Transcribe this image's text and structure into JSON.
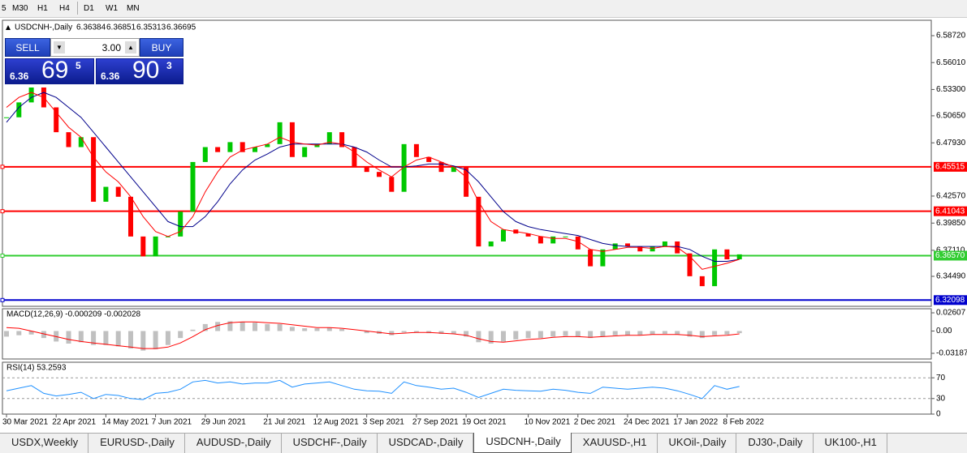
{
  "toolbar": {
    "timeframes": [
      "5",
      "M30",
      "H1",
      "H4",
      "D1",
      "W1",
      "MN"
    ]
  },
  "trade_panel": {
    "sell_label": "SELL",
    "lots": "3.00",
    "buy_label": "BUY",
    "sell_price": {
      "big": "6.36",
      "main": "69",
      "pip": "5"
    },
    "buy_price": {
      "big": "6.36",
      "main": "90",
      "pip": "3"
    }
  },
  "chart_data": [
    {
      "type": "candlestick",
      "title": "USDCNH-,Daily",
      "ohlc": [
        6.36384,
        6.36851,
        6.35313,
        6.36695
      ],
      "x": [
        "30 Mar 2021",
        null,
        null,
        null,
        "22 Apr 2021",
        null,
        null,
        null,
        "14 May 2021",
        null,
        null,
        null,
        "7 Jun 2021",
        null,
        null,
        null,
        "29 Jun 2021",
        null,
        null,
        null,
        null,
        "21 Jul 2021",
        null,
        null,
        null,
        "12 Aug 2021",
        null,
        null,
        null,
        "3 Sep 2021",
        null,
        null,
        null,
        "27 Sep 2021",
        null,
        null,
        null,
        "19 Oct 2021",
        null,
        null,
        null,
        null,
        "10 Nov 2021",
        null,
        null,
        null,
        "2 Dec 2021",
        null,
        null,
        null,
        "24 Dec 2021",
        null,
        null,
        null,
        "17 Jan 2022",
        null,
        null,
        null,
        "8 Feb 2022",
        null
      ],
      "close": [
        6.505,
        6.52,
        6.535,
        6.515,
        6.49,
        6.475,
        6.485,
        6.42,
        6.435,
        6.425,
        6.385,
        6.365,
        6.385,
        6.385,
        6.41,
        6.46,
        6.475,
        6.47,
        6.48,
        6.47,
        6.475,
        6.478,
        6.5,
        6.465,
        6.475,
        6.478,
        6.49,
        6.475,
        6.455,
        6.45,
        6.445,
        6.43,
        6.478,
        6.465,
        6.46,
        6.45,
        6.455,
        6.425,
        6.375,
        6.38,
        6.392,
        6.388,
        6.385,
        6.378,
        6.385,
        6.385,
        6.372,
        6.355,
        6.372,
        6.378,
        6.375,
        6.37,
        6.375,
        6.38,
        6.368,
        6.345,
        6.335,
        6.372,
        6.362,
        6.367
      ],
      "up_color": "#00c800",
      "down_color": "#ff0000",
      "ma_fast": {
        "color": "#ff0000",
        "values": [
          6.515,
          6.525,
          6.53,
          6.525,
          6.51,
          6.495,
          6.485,
          6.465,
          6.45,
          6.44,
          6.425,
          6.405,
          6.39,
          6.385,
          6.39,
          6.405,
          6.43,
          6.45,
          6.465,
          6.472,
          6.475,
          6.478,
          6.485,
          6.48,
          6.478,
          6.477,
          6.48,
          6.478,
          6.47,
          6.46,
          6.452,
          6.445,
          6.455,
          6.462,
          6.465,
          6.46,
          6.455,
          6.445,
          6.42,
          6.4,
          6.392,
          6.39,
          6.388,
          6.385,
          6.383,
          6.383,
          6.38,
          6.372,
          6.37,
          6.372,
          6.374,
          6.374,
          6.373,
          6.375,
          6.374,
          6.365,
          6.352,
          6.355,
          6.358,
          6.362
        ]
      },
      "ma_slow": {
        "color": "#00008b",
        "values": [
          6.5,
          6.515,
          6.525,
          6.53,
          6.525,
          6.515,
          6.505,
          6.49,
          6.475,
          6.46,
          6.445,
          6.43,
          6.415,
          6.4,
          6.395,
          6.395,
          6.405,
          6.42,
          6.438,
          6.452,
          6.462,
          6.468,
          6.475,
          6.478,
          6.478,
          6.478,
          6.478,
          6.478,
          6.475,
          6.47,
          6.462,
          6.455,
          6.455,
          6.456,
          6.458,
          6.458,
          6.456,
          6.452,
          6.44,
          6.425,
          6.41,
          6.4,
          6.395,
          6.392,
          6.39,
          6.388,
          6.386,
          6.382,
          6.378,
          6.376,
          6.375,
          6.375,
          6.375,
          6.375,
          6.375,
          6.372,
          6.365,
          6.36,
          6.36,
          6.362
        ]
      },
      "levels": [
        {
          "value": 6.45515,
          "label": "6.45515",
          "color": "#ff0000"
        },
        {
          "value": 6.41043,
          "label": "6.41043",
          "color": "#ff0000"
        },
        {
          "value": 6.3657,
          "label": "6.36570",
          "color": "#32cd32"
        },
        {
          "value": 6.32098,
          "label": "6.32098",
          "color": "#0000cd"
        }
      ],
      "ylim": [
        6.3147,
        6.6027
      ],
      "yticks": [
        {
          "value": 6.5872,
          "label": "6.58720"
        },
        {
          "value": 6.5601,
          "label": "6.56010"
        },
        {
          "value": 6.533,
          "label": "6.53300"
        },
        {
          "value": 6.5065,
          "label": "6.50650"
        },
        {
          "value": 6.4793,
          "label": "6.47930"
        },
        {
          "value": 6.4257,
          "label": "6.42570"
        },
        {
          "value": 6.3985,
          "label": "6.39850"
        },
        {
          "value": 6.3711,
          "label": "6.37110"
        },
        {
          "value": 6.3449,
          "label": "6.34490"
        }
      ]
    },
    {
      "type": "macd",
      "title": "MACD(12,26,9) -0.000209 -0.002028",
      "histogram": {
        "color": "#c0c0c0",
        "values": [
          -0.008,
          -0.006,
          -0.005,
          -0.01,
          -0.015,
          -0.018,
          -0.016,
          -0.02,
          -0.02,
          -0.022,
          -0.025,
          -0.028,
          -0.026,
          -0.02,
          -0.01,
          0.002,
          0.01,
          0.013,
          0.014,
          0.013,
          0.012,
          0.01,
          0.01,
          0.006,
          0.004,
          0.004,
          0.005,
          0.003,
          0,
          -0.003,
          -0.004,
          -0.006,
          -0.002,
          -0.002,
          -0.003,
          -0.004,
          -0.004,
          -0.008,
          -0.016,
          -0.018,
          -0.015,
          -0.012,
          -0.01,
          -0.01,
          -0.008,
          -0.007,
          -0.008,
          -0.01,
          -0.008,
          -0.006,
          -0.006,
          -0.006,
          -0.005,
          -0.004,
          -0.005,
          -0.008,
          -0.01,
          -0.006,
          -0.005,
          -0.003
        ]
      },
      "signal": {
        "color": "#ff0000",
        "values": [
          0.005,
          0.004,
          0,
          -0.004,
          -0.008,
          -0.012,
          -0.015,
          -0.017,
          -0.019,
          -0.021,
          -0.023,
          -0.025,
          -0.025,
          -0.023,
          -0.017,
          -0.008,
          0.002,
          0.008,
          0.012,
          0.013,
          0.013,
          0.012,
          0.011,
          0.009,
          0.007,
          0.005,
          0.005,
          0.004,
          0.002,
          0,
          -0.002,
          -0.004,
          -0.003,
          -0.002,
          -0.002,
          -0.003,
          -0.004,
          -0.006,
          -0.011,
          -0.015,
          -0.016,
          -0.014,
          -0.012,
          -0.011,
          -0.009,
          -0.008,
          -0.008,
          -0.009,
          -0.008,
          -0.007,
          -0.006,
          -0.006,
          -0.005,
          -0.005,
          -0.005,
          -0.006,
          -0.008,
          -0.007,
          -0.006,
          -0.004
        ]
      },
      "ylim": [
        -0.04,
        0.0319
      ],
      "yticks": [
        0.02607,
        {
          "value": 0,
          "label": "0.00"
        },
        -0.03187
      ]
    },
    {
      "type": "rsi",
      "title": "RSI(14) 53.2593",
      "color": "#1e90ff",
      "values": [
        45,
        50,
        55,
        40,
        35,
        38,
        42,
        30,
        38,
        36,
        30,
        28,
        40,
        42,
        48,
        62,
        65,
        60,
        62,
        58,
        60,
        60,
        65,
        52,
        58,
        60,
        62,
        55,
        48,
        45,
        44,
        40,
        62,
        55,
        52,
        48,
        50,
        42,
        32,
        40,
        48,
        46,
        45,
        44,
        48,
        46,
        42,
        40,
        52,
        50,
        48,
        50,
        52,
        50,
        45,
        38,
        30,
        55,
        48,
        53.26
      ],
      "levels": [
        70,
        30
      ],
      "ylim": [
        0,
        100
      ],
      "yticks": [
        70,
        30,
        0
      ]
    }
  ],
  "tabs": {
    "items": [
      "USDX,Weekly",
      "EURUSD-,Daily",
      "AUDUSD-,Daily",
      "USDCHF-,Daily",
      "USDCAD-,Daily",
      "USDCNH-,Daily",
      "XAUUSD-,H1",
      "UKOil-,Daily",
      "DJ30-,Daily",
      "UK100-,H1"
    ],
    "active": 5
  }
}
